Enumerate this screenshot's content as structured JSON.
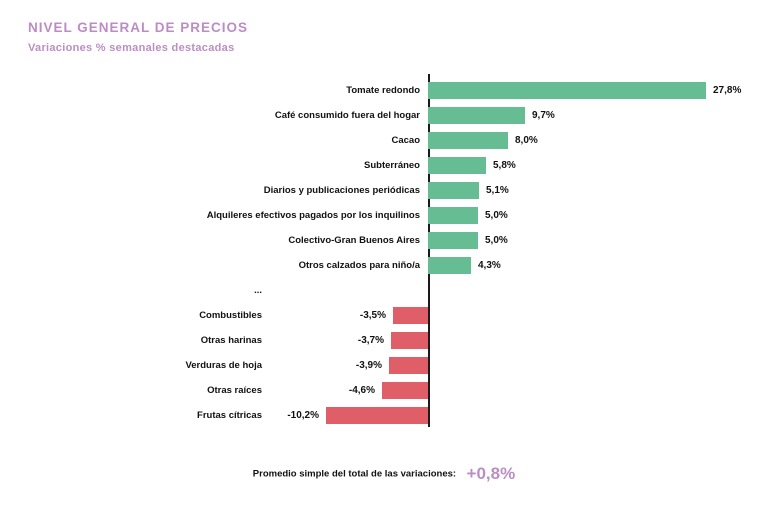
{
  "header": {
    "title": "NIVEL GENERAL DE PRECIOS",
    "subtitle": "Variaciones % semanales destacadas"
  },
  "footer": {
    "label": "Promedio simple del total de las variaciones:",
    "value": "+0,8%"
  },
  "colors": {
    "accent_purple": "#bc8dc4",
    "positive_green": "#66bd94",
    "negative_red": "#e05e68",
    "axis": "#1a1a1a",
    "text": "#111111"
  },
  "chart_data": {
    "type": "bar",
    "orientation": "horizontal",
    "title": "NIVEL GENERAL DE PRECIOS",
    "subtitle": "Variaciones % semanales destacadas",
    "unit": "%",
    "xlim": [
      -12,
      29
    ],
    "legend": "none",
    "grid": false,
    "rows": [
      {
        "label": "Tomate redondo",
        "value": 27.8,
        "display": "27,8%"
      },
      {
        "label": "Café consumido fuera del hogar",
        "value": 9.7,
        "display": "9,7%"
      },
      {
        "label": "Cacao",
        "value": 8.0,
        "display": "8,0%"
      },
      {
        "label": "Subterráneo",
        "value": 5.8,
        "display": "5,8%"
      },
      {
        "label": "Diarios y publicaciones periódicas",
        "value": 5.1,
        "display": "5,1%"
      },
      {
        "label": "Alquileres efectivos pagados por los inquilinos",
        "value": 5.0,
        "display": "5,0%"
      },
      {
        "label": "Colectivo-Gran Buenos Aires",
        "value": 5.0,
        "display": "5,0%"
      },
      {
        "label": "Otros calzados para niño/a",
        "value": 4.3,
        "display": "4,3%"
      },
      {
        "label": "...",
        "value": null,
        "display": "",
        "separator": true
      },
      {
        "label": "Combustibles",
        "value": -3.5,
        "display": "-3,5%"
      },
      {
        "label": "Otras harinas",
        "value": -3.7,
        "display": "-3,7%"
      },
      {
        "label": "Verduras de hoja",
        "value": -3.9,
        "display": "-3,9%"
      },
      {
        "label": "Otras raíces",
        "value": -4.6,
        "display": "-4,6%"
      },
      {
        "label": "Frutas cítricas",
        "value": -10.2,
        "display": "-10,2%"
      }
    ],
    "footnote": "Promedio simple del total de las variaciones: +0,8%"
  }
}
